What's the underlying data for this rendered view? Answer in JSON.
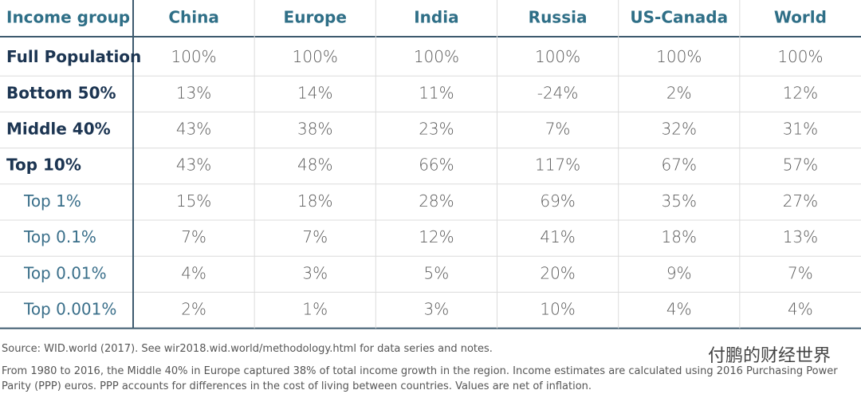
{
  "table": {
    "header": [
      "Income group",
      "China",
      "Europe",
      "India",
      "Russia",
      "US-Canada",
      "World"
    ],
    "rows": [
      [
        "Full Population",
        "100%",
        "100%",
        "100%",
        "100%",
        "100%",
        "100%"
      ],
      [
        "Bottom 50%",
        "13%",
        "14%",
        "11%",
        "-24%",
        "2%",
        "12%"
      ],
      [
        "Middle 40%",
        "43%",
        "38%",
        "23%",
        "7%",
        "32%",
        "31%"
      ],
      [
        "Top 10%",
        "43%",
        "48%",
        "66%",
        "117%",
        "67%",
        "57%"
      ],
      [
        "Top 1%",
        "15%",
        "18%",
        "28%",
        "69%",
        "35%",
        "27%"
      ],
      [
        "Top 0.1%",
        "7%",
        "7%",
        "12%",
        "41%",
        "18%",
        "13%"
      ],
      [
        "Top 0.01%",
        "4%",
        "3%",
        "5%",
        "20%",
        "9%",
        "7%"
      ],
      [
        "Top 0.001%",
        "2%",
        "1%",
        "3%",
        "10%",
        "4%",
        "4%"
      ]
    ]
  },
  "source": "Source: WID.world (2017). See wir2018.wid.world/methodology.html for data series and notes.",
  "note": "From 1980 to 2016, the Middle 40% in Europe captured 38% of total income growth in the region. Income estimates are calculated using 2016 Purchasing Power Parity (PPP) euros. PPP accounts for differences in the cost of living between countries. Values are net of inflation.",
  "watermark": "付鹏的财经世界"
}
